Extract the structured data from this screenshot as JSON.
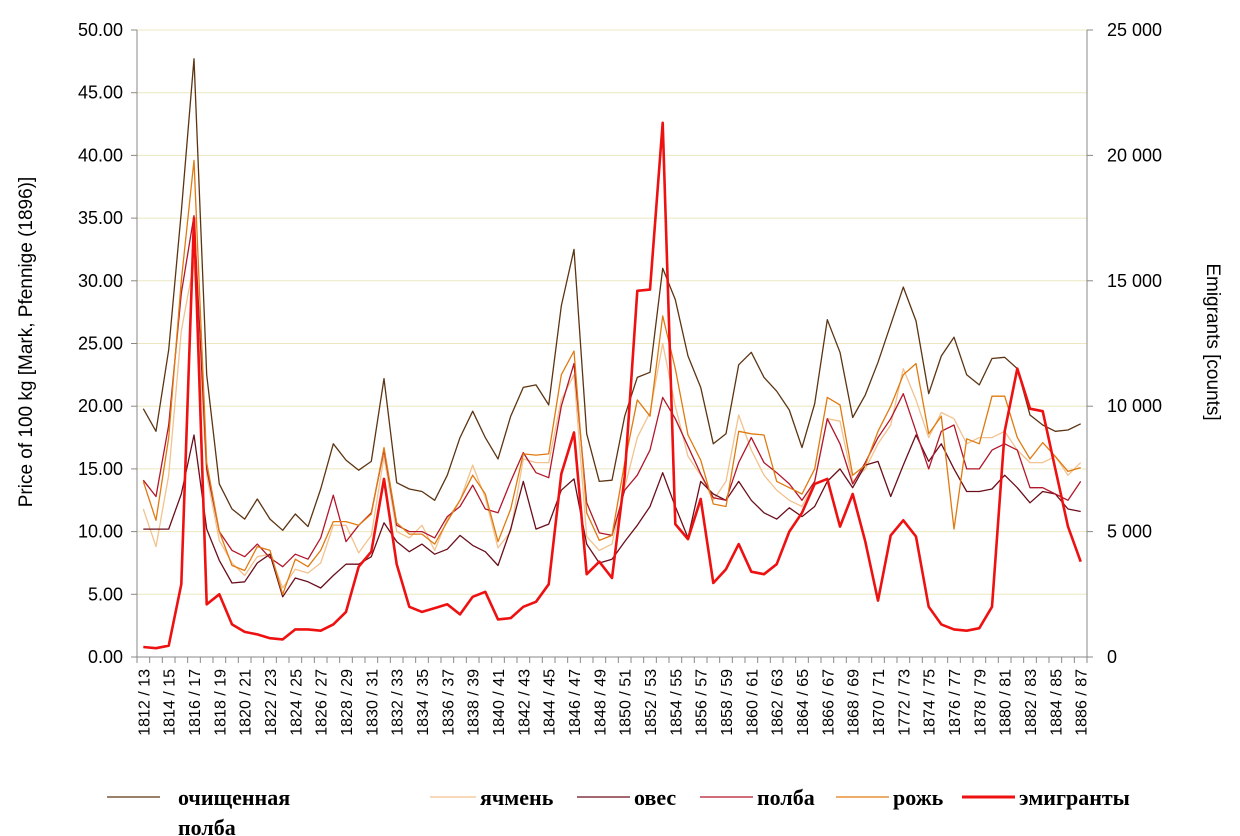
{
  "chart_data": {
    "type": "line",
    "x": [
      "1812/13",
      "1813/14",
      "1814/15",
      "1815/16",
      "1816/17",
      "1817/18",
      "1818/19",
      "1819/20",
      "1820/21",
      "1821/22",
      "1822/23",
      "1823/24",
      "1824/25",
      "1825/26",
      "1826/27",
      "1827/28",
      "1828/29",
      "1829/30",
      "1830/31",
      "1831/32",
      "1832/33",
      "1833/34",
      "1834/35",
      "1835/36",
      "1836/37",
      "1837/38",
      "1838/39",
      "1839/40",
      "1840/41",
      "1841/42",
      "1842/43",
      "1843/44",
      "1844/45",
      "1845/46",
      "1846/47",
      "1847/48",
      "1848/49",
      "1849/50",
      "1850/51",
      "1851/52",
      "1852/53",
      "1853/54",
      "1854/55",
      "1855/56",
      "1856/57",
      "1857/58",
      "1858/59",
      "1859/60",
      "1860/61",
      "1861/62",
      "1862/63",
      "1863/64",
      "1864/65",
      "1865/66",
      "1866/67",
      "1867/68",
      "1868/69",
      "1869/70",
      "1870/71",
      "1871/72",
      "1772/73",
      "1873/74",
      "1874/75",
      "1875/76",
      "1876/77",
      "1877/78",
      "1878/79",
      "1879/80",
      "1880/81",
      "1881/82",
      "1882/83",
      "1883/84",
      "1884/85",
      "1885/86",
      "1886/87"
    ],
    "x_tick_labels": [
      "1812 / 13",
      "1814 / 15",
      "1816 / 17",
      "1818 / 19",
      "1820 / 21",
      "1822 / 23",
      "1824 / 25",
      "1826 / 27",
      "1828 / 29",
      "1830 / 31",
      "1832 / 33",
      "1834 / 35",
      "1836 / 37",
      "1838 / 39",
      "1840 / 41",
      "1842 / 43",
      "1844 / 45",
      "1846 / 47",
      "1848 / 49",
      "1850 / 51",
      "1852 / 53",
      "1854 / 55",
      "1856 / 57",
      "1858 / 59",
      "1860 / 61",
      "1862 / 63",
      "1864 / 65",
      "1866 / 67",
      "1868 / 69",
      "1870 / 71",
      "1772 / 73",
      "1874 / 75",
      "1876 / 77",
      "1878 / 79",
      "1880 / 81",
      "1882 / 83",
      "1884 / 85",
      "1886 / 87"
    ],
    "y_left": {
      "label": "Price of 100  kg [Mark, Pfennige (1896)]",
      "range": [
        0,
        50
      ],
      "ticks": [
        "0.00",
        "5.00",
        "10.00",
        "15.00",
        "20.00",
        "25.00",
        "30.00",
        "35.00",
        "40.00",
        "45.00",
        "50.00"
      ]
    },
    "y_right": {
      "label": "Emigrants [counts]",
      "range": [
        0,
        25000
      ],
      "ticks": [
        "0",
        "5 000",
        "10 000",
        "15 000",
        "20 000",
        "25 000"
      ]
    },
    "grid": "horizontal",
    "legend_position": "bottom",
    "series": [
      {
        "name": "очищенная полба",
        "axis": "left",
        "color": "#5c3412",
        "width": 1.3,
        "values": [
          19.8,
          18.0,
          24.5,
          35.5,
          47.7,
          22.5,
          13.8,
          11.8,
          11.0,
          12.6,
          11.0,
          10.1,
          11.4,
          10.4,
          13.4,
          17.0,
          15.7,
          14.9,
          15.6,
          22.2,
          13.9,
          13.4,
          13.2,
          12.5,
          14.5,
          17.5,
          19.6,
          17.5,
          15.8,
          19.2,
          21.5,
          21.7,
          20.1,
          28.0,
          32.5,
          17.8,
          14.0,
          14.1,
          19.2,
          22.3,
          22.7,
          31.0,
          28.5,
          24.0,
          21.5,
          17.0,
          17.8,
          23.3,
          24.3,
          22.3,
          21.2,
          19.7,
          16.7,
          20.2,
          26.9,
          24.3,
          19.1,
          20.9,
          23.5,
          26.5,
          29.5,
          26.8,
          21.0,
          24.0,
          25.5,
          22.5,
          21.7,
          23.8,
          23.9,
          23.0,
          19.3,
          18.5,
          18.0,
          18.1,
          18.6
        ]
      },
      {
        "name": "ячмень",
        "axis": "left",
        "color": "#f2c28f",
        "width": 1.3,
        "values": [
          11.8,
          8.8,
          14.5,
          26.0,
          31.5,
          14.5,
          9.3,
          7.5,
          6.5,
          8.0,
          8.2,
          5.5,
          7.0,
          6.7,
          7.5,
          10.5,
          10.5,
          8.3,
          9.7,
          16.0,
          10.0,
          9.5,
          10.5,
          8.5,
          11.0,
          12.5,
          15.3,
          12.7,
          8.7,
          10.0,
          15.8,
          15.5,
          15.5,
          20.5,
          22.5,
          9.6,
          8.5,
          9.0,
          13.5,
          17.5,
          19.5,
          25.0,
          20.0,
          16.0,
          14.5,
          12.5,
          14.0,
          19.3,
          16.5,
          14.5,
          13.3,
          12.5,
          12.0,
          14.0,
          19.0,
          18.8,
          14.0,
          15.0,
          17.0,
          18.5,
          23.0,
          20.5,
          17.5,
          19.5,
          19.0,
          17.0,
          17.5,
          17.5,
          18.0,
          16.5,
          15.5,
          15.5,
          16.0,
          14.5,
          15.5
        ]
      },
      {
        "name": "овес",
        "axis": "left",
        "color": "#6b0e1c",
        "width": 1.3,
        "values": [
          10.2,
          10.2,
          10.2,
          13.0,
          17.7,
          10.2,
          7.7,
          5.9,
          6.0,
          7.5,
          8.2,
          4.8,
          6.3,
          6.0,
          5.5,
          6.5,
          7.4,
          7.4,
          8.0,
          10.7,
          9.2,
          8.4,
          9.0,
          8.2,
          8.6,
          9.7,
          8.9,
          8.4,
          7.3,
          10.2,
          14.0,
          10.2,
          10.6,
          13.3,
          14.2,
          9.0,
          7.5,
          7.8,
          9.2,
          10.5,
          12.0,
          14.7,
          12.0,
          9.5,
          14.0,
          13.0,
          12.5,
          14.0,
          12.5,
          11.5,
          11.0,
          11.9,
          11.2,
          12.0,
          14.0,
          15.0,
          13.5,
          15.3,
          15.6,
          12.8,
          15.3,
          17.7,
          15.6,
          17.0,
          15.0,
          13.2,
          13.2,
          13.4,
          14.5,
          13.5,
          12.3,
          13.2,
          13.0,
          11.8,
          11.6
        ]
      },
      {
        "name": "полба",
        "axis": "left",
        "color": "#b3162a",
        "width": 1.3,
        "values": [
          14.1,
          12.8,
          18.5,
          29.0,
          35.2,
          15.0,
          10.0,
          8.5,
          8.0,
          9.0,
          7.9,
          7.2,
          8.2,
          7.8,
          9.5,
          12.9,
          9.2,
          10.5,
          11.5,
          16.5,
          10.5,
          10.0,
          10.0,
          9.5,
          11.2,
          12.0,
          13.7,
          11.8,
          11.5,
          14.0,
          16.3,
          14.7,
          14.3,
          20.0,
          23.4,
          12.3,
          9.9,
          9.7,
          13.3,
          14.5,
          16.5,
          20.7,
          19.0,
          16.8,
          14.6,
          12.7,
          12.5,
          15.5,
          17.5,
          15.5,
          14.7,
          13.8,
          12.5,
          14.0,
          19.0,
          17.0,
          13.8,
          15.5,
          17.5,
          19.0,
          21.0,
          18.0,
          15.0,
          18.0,
          18.5,
          15.0,
          15.0,
          16.5,
          17.0,
          16.5,
          13.5,
          13.5,
          13.0,
          12.5,
          14.0
        ]
      },
      {
        "name": "рожь",
        "axis": "left",
        "color": "#e07a10",
        "width": 1.3,
        "values": [
          14.0,
          10.9,
          17.5,
          30.0,
          39.6,
          15.5,
          10.0,
          7.3,
          6.9,
          8.8,
          8.5,
          5.0,
          7.8,
          7.2,
          8.5,
          10.8,
          10.8,
          10.5,
          11.4,
          16.7,
          10.7,
          9.8,
          9.8,
          9.0,
          10.8,
          12.5,
          14.5,
          13.0,
          9.2,
          11.8,
          16.2,
          16.1,
          16.2,
          22.5,
          24.4,
          11.5,
          9.3,
          9.7,
          15.5,
          20.5,
          19.2,
          27.2,
          23.0,
          17.7,
          15.7,
          12.2,
          12.0,
          18.0,
          17.8,
          17.7,
          14.0,
          13.5,
          13.0,
          15.0,
          20.7,
          20.1,
          14.5,
          15.3,
          18.0,
          20.0,
          22.5,
          23.4,
          17.8,
          19.2,
          10.2,
          17.4,
          17.0,
          20.8,
          20.8,
          17.5,
          15.8,
          17.1,
          16.0,
          14.8,
          15.1
        ]
      },
      {
        "name": "эмигранты",
        "axis": "right",
        "color": "#ee1111",
        "width": 2.6,
        "values": [
          400,
          350,
          450,
          2900,
          17500,
          2100,
          2500,
          1300,
          1000,
          900,
          750,
          700,
          1100,
          1100,
          1050,
          1300,
          1800,
          3600,
          4200,
          7100,
          3700,
          2000,
          1800,
          1950,
          2100,
          1700,
          2400,
          2600,
          1500,
          1550,
          2000,
          2200,
          2900,
          7300,
          8950,
          3300,
          3800,
          3150,
          7200,
          14600,
          14650,
          21300,
          5300,
          4700,
          6300,
          2950,
          3500,
          4500,
          3400,
          3300,
          3700,
          5000,
          5750,
          6900,
          7100,
          5200,
          6500,
          4600,
          2250,
          4850,
          5450,
          4800,
          2000,
          1300,
          1100,
          1050,
          1150,
          2000,
          9000,
          11500,
          9900,
          9800,
          7500,
          5200,
          3800
        ]
      }
    ]
  }
}
